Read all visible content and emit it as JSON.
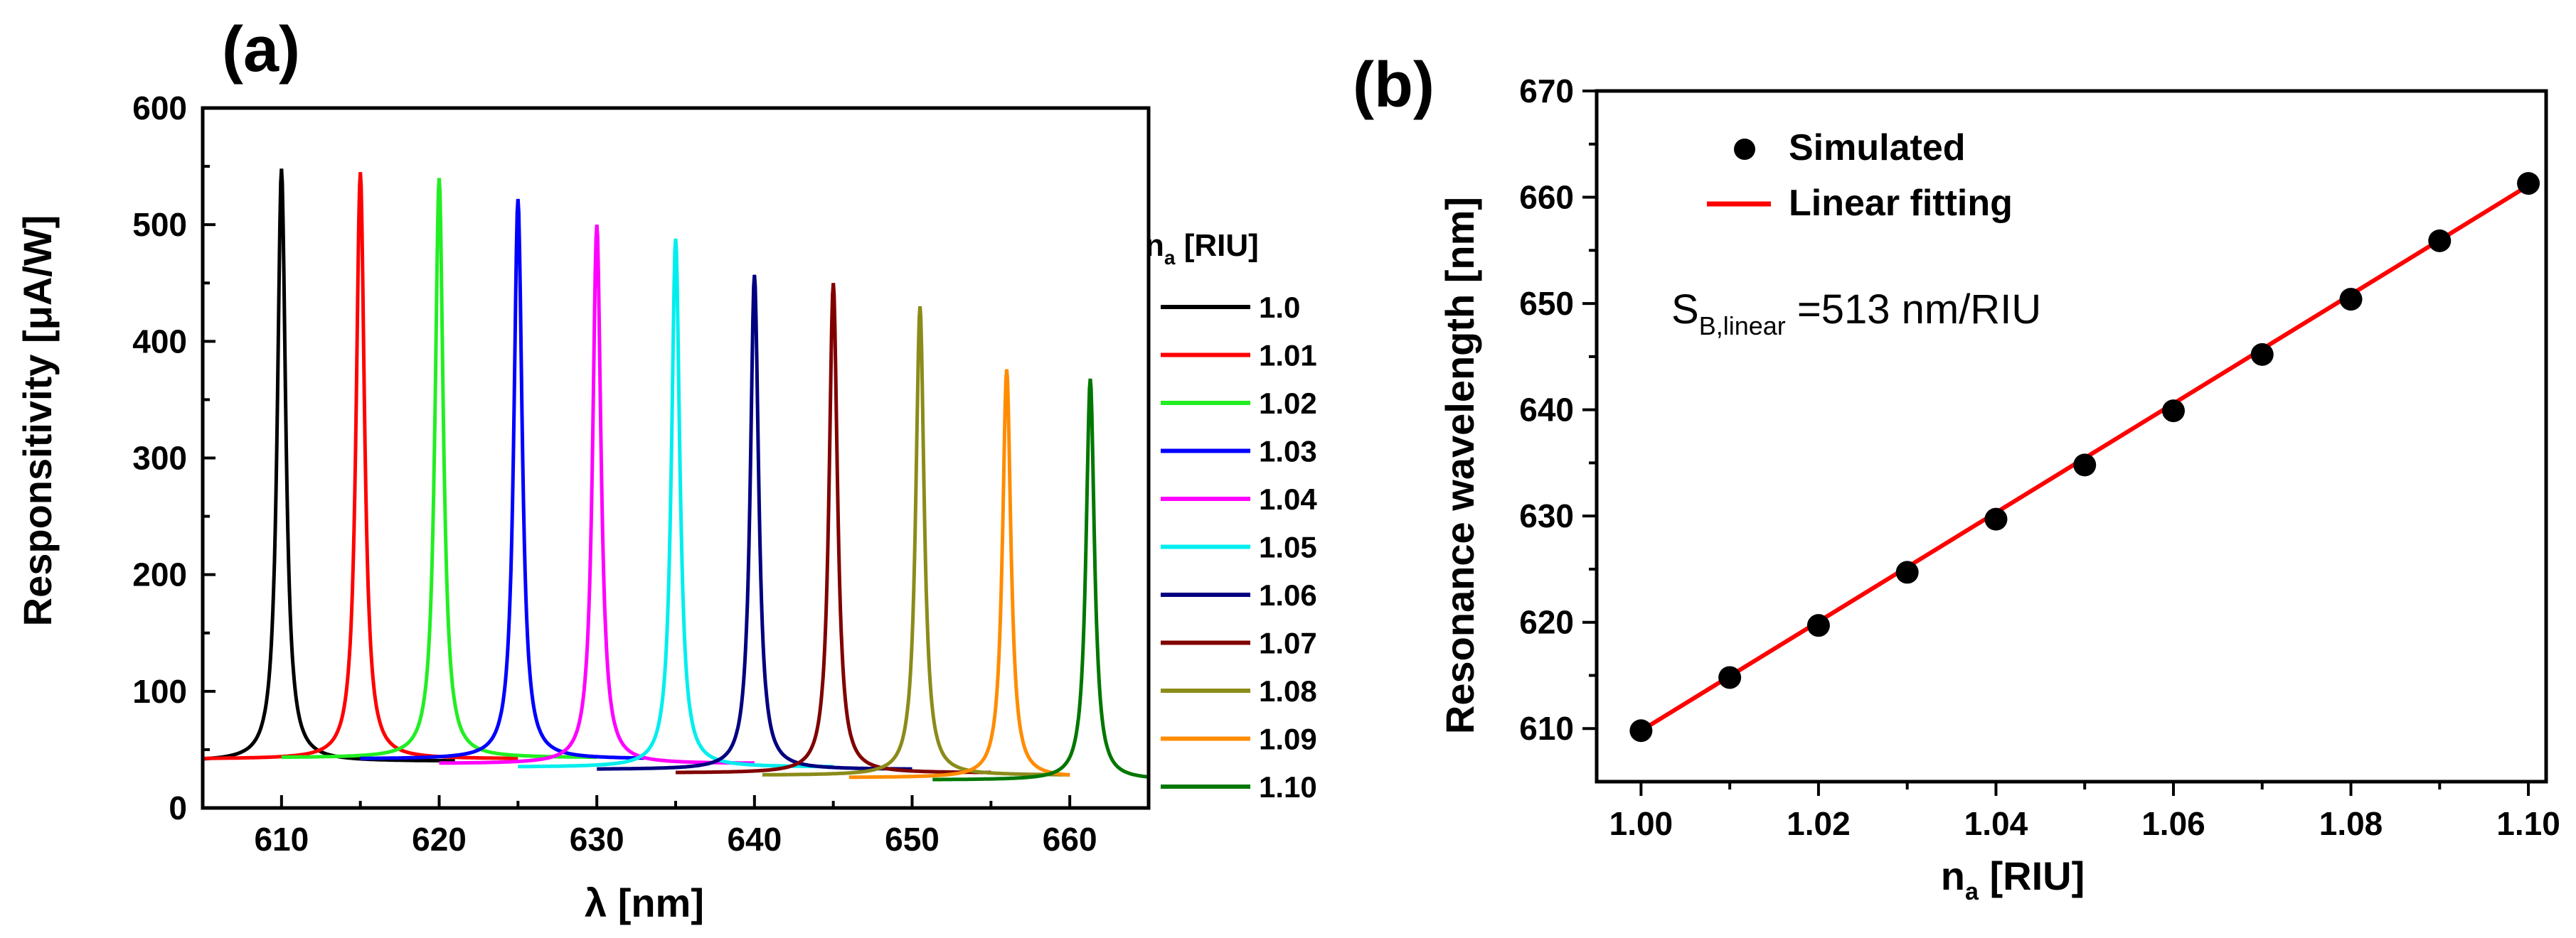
{
  "chart_data": [
    {
      "panel_label": "(a)",
      "type": "line",
      "xlabel": "λ [nm]",
      "ylabel": "Responsitivity  [μA/W]",
      "xlim": [
        605,
        665
      ],
      "ylim": [
        0,
        600
      ],
      "xticks": [
        610,
        620,
        630,
        640,
        650,
        660
      ],
      "yticks": [
        0,
        100,
        200,
        300,
        400,
        500,
        600
      ],
      "legend_title_main": "n",
      "legend_title_sub": "a",
      "legend_title_unit": " [RIU]",
      "series": [
        {
          "name": "1.0",
          "color": "#000000",
          "peak_x": 610.0,
          "peak_y": 548,
          "base_y": 40,
          "end_x": 621
        },
        {
          "name": "1.01",
          "color": "#ff0000",
          "peak_x": 615.0,
          "peak_y": 545,
          "base_y": 42,
          "end_x": 625
        },
        {
          "name": "1.02",
          "color": "#22ee22",
          "peak_x": 620.0,
          "peak_y": 540,
          "base_y": 43,
          "end_x": 630
        },
        {
          "name": "1.03",
          "color": "#0000ff",
          "peak_x": 625.0,
          "peak_y": 522,
          "base_y": 42,
          "end_x": 633
        },
        {
          "name": "1.04",
          "color": "#ff00ff",
          "peak_x": 630.0,
          "peak_y": 500,
          "base_y": 38,
          "end_x": 640
        },
        {
          "name": "1.05",
          "color": "#00eeee",
          "peak_x": 635.0,
          "peak_y": 488,
          "base_y": 35,
          "end_x": 645
        },
        {
          "name": "1.06",
          "color": "#000080",
          "peak_x": 640.0,
          "peak_y": 457,
          "base_y": 33,
          "end_x": 650
        },
        {
          "name": "1.07",
          "color": "#800000",
          "peak_x": 645.0,
          "peak_y": 450,
          "base_y": 30,
          "end_x": 655
        },
        {
          "name": "1.08",
          "color": "#8b8b1a",
          "peak_x": 650.5,
          "peak_y": 430,
          "base_y": 28,
          "end_x": 660
        },
        {
          "name": "1.09",
          "color": "#ff8c00",
          "peak_x": 656.0,
          "peak_y": 376,
          "base_y": 26,
          "end_x": 660
        },
        {
          "name": "1.10",
          "color": "#007700",
          "peak_x": 661.3,
          "peak_y": 368,
          "base_y": 24,
          "end_x": 665
        }
      ]
    },
    {
      "panel_label": "(b)",
      "type": "scatter",
      "xlabel_main": "n",
      "xlabel_sub": "a",
      "xlabel_unit": " [RIU]",
      "ylabel": "Resonance wavelength [nm]",
      "xlim": [
        0.995,
        1.102
      ],
      "ylim": [
        605,
        670
      ],
      "xticks": [
        "1.00",
        "1.02",
        "1.04",
        "1.06",
        "1.08",
        "1.10"
      ],
      "yticks": [
        610,
        620,
        630,
        640,
        650,
        660,
        670
      ],
      "x": [
        1.0,
        1.01,
        1.02,
        1.03,
        1.04,
        1.05,
        1.06,
        1.07,
        1.08,
        1.09,
        1.1
      ],
      "y": [
        609.8,
        614.8,
        619.7,
        624.7,
        629.7,
        634.8,
        639.9,
        645.2,
        650.4,
        655.9,
        661.3
      ],
      "fit": {
        "slope": 513,
        "intercept": 96.8,
        "x_range": [
          1.0,
          1.1
        ]
      },
      "legend": [
        {
          "label": "Simulated",
          "marker": "circle",
          "color": "#000000"
        },
        {
          "label": "Linear fitting",
          "marker": "line",
          "color": "#ff0000"
        }
      ],
      "annotation": {
        "main": "S",
        "sub": "B,linear",
        "rest": " =513 nm/RIU"
      }
    }
  ]
}
